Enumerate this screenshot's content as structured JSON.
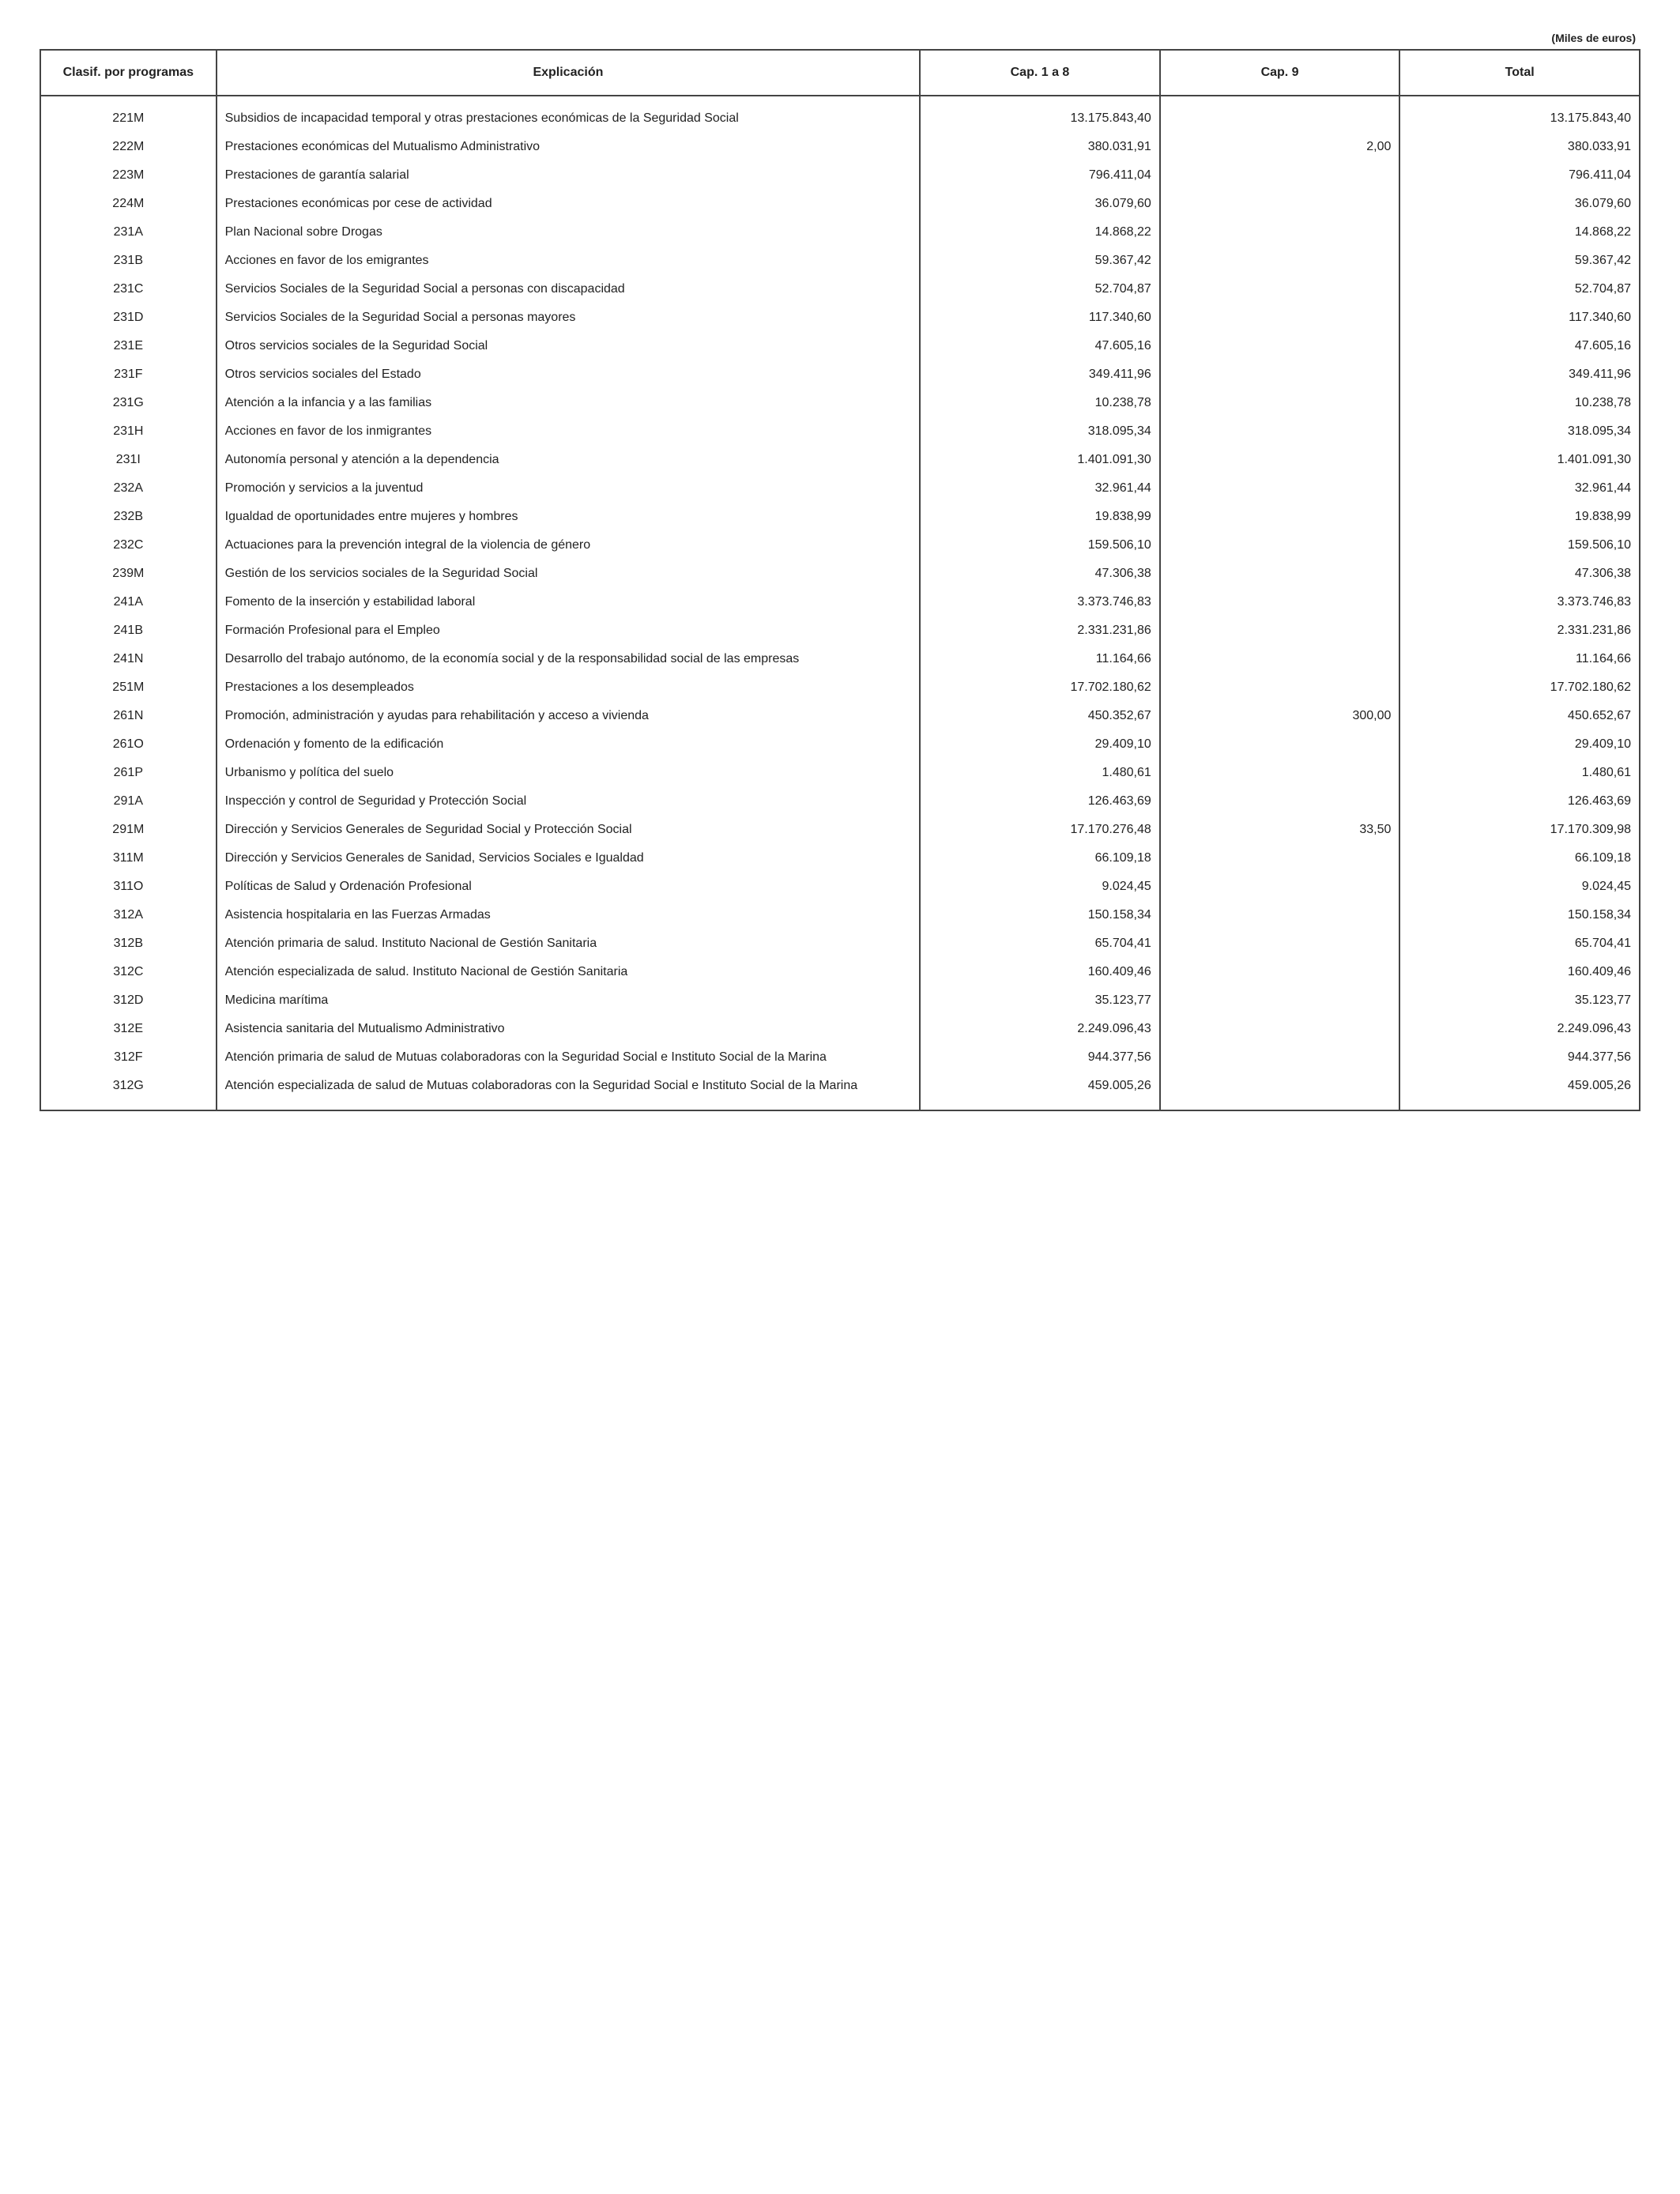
{
  "unit_label": "(Miles de euros)",
  "headers": {
    "code": "Clasif. por programas",
    "expl": "Explicación",
    "cap18": "Cap. 1 a 8",
    "cap9": "Cap. 9",
    "total": "Total"
  },
  "rows": [
    {
      "code": "221M",
      "expl": "Subsidios de incapacidad temporal y otras prestaciones económicas de la Seguridad Social",
      "cap18": "13.175.843,40",
      "cap9": "",
      "total": "13.175.843,40"
    },
    {
      "code": "222M",
      "expl": "Prestaciones económicas del Mutualismo Administrativo",
      "cap18": "380.031,91",
      "cap9": "2,00",
      "total": "380.033,91"
    },
    {
      "code": "223M",
      "expl": "Prestaciones de garantía salarial",
      "cap18": "796.411,04",
      "cap9": "",
      "total": "796.411,04"
    },
    {
      "code": "224M",
      "expl": "Prestaciones económicas por cese de actividad",
      "cap18": "36.079,60",
      "cap9": "",
      "total": "36.079,60"
    },
    {
      "code": "231A",
      "expl": "Plan Nacional sobre Drogas",
      "cap18": "14.868,22",
      "cap9": "",
      "total": "14.868,22"
    },
    {
      "code": "231B",
      "expl": "Acciones en favor de los emigrantes",
      "cap18": "59.367,42",
      "cap9": "",
      "total": "59.367,42"
    },
    {
      "code": "231C",
      "expl": "Servicios Sociales de la Seguridad Social a personas con discapacidad",
      "cap18": "52.704,87",
      "cap9": "",
      "total": "52.704,87"
    },
    {
      "code": "231D",
      "expl": "Servicios Sociales de la Seguridad Social a personas mayores",
      "cap18": "117.340,60",
      "cap9": "",
      "total": "117.340,60"
    },
    {
      "code": "231E",
      "expl": "Otros servicios sociales de la Seguridad Social",
      "cap18": "47.605,16",
      "cap9": "",
      "total": "47.605,16"
    },
    {
      "code": "231F",
      "expl": "Otros servicios sociales del Estado",
      "cap18": "349.411,96",
      "cap9": "",
      "total": "349.411,96"
    },
    {
      "code": "231G",
      "expl": "Atención a la infancia y a las familias",
      "cap18": "10.238,78",
      "cap9": "",
      "total": "10.238,78"
    },
    {
      "code": "231H",
      "expl": "Acciones en favor de los inmigrantes",
      "cap18": "318.095,34",
      "cap9": "",
      "total": "318.095,34"
    },
    {
      "code": "231I",
      "expl": "Autonomía personal y atención a la dependencia",
      "cap18": "1.401.091,30",
      "cap9": "",
      "total": "1.401.091,30"
    },
    {
      "code": "232A",
      "expl": "Promoción y servicios a la juventud",
      "cap18": "32.961,44",
      "cap9": "",
      "total": "32.961,44"
    },
    {
      "code": "232B",
      "expl": "Igualdad de oportunidades entre mujeres y hombres",
      "cap18": "19.838,99",
      "cap9": "",
      "total": "19.838,99"
    },
    {
      "code": "232C",
      "expl": "Actuaciones para la prevención integral de la violencia de género",
      "cap18": "159.506,10",
      "cap9": "",
      "total": "159.506,10"
    },
    {
      "code": "239M",
      "expl": "Gestión de los servicios sociales de la Seguridad Social",
      "cap18": "47.306,38",
      "cap9": "",
      "total": "47.306,38"
    },
    {
      "code": "241A",
      "expl": "Fomento de la inserción y estabilidad laboral",
      "cap18": "3.373.746,83",
      "cap9": "",
      "total": "3.373.746,83"
    },
    {
      "code": "241B",
      "expl": "Formación Profesional para el Empleo",
      "cap18": "2.331.231,86",
      "cap9": "",
      "total": "2.331.231,86"
    },
    {
      "code": "241N",
      "expl": "Desarrollo del trabajo autónomo, de la economía social y de la responsabilidad social de las empresas",
      "cap18": "11.164,66",
      "cap9": "",
      "total": "11.164,66"
    },
    {
      "code": "251M",
      "expl": "Prestaciones a los desempleados",
      "cap18": "17.702.180,62",
      "cap9": "",
      "total": "17.702.180,62"
    },
    {
      "code": "261N",
      "expl": "Promoción, administración y ayudas para rehabilitación y acceso a vivienda",
      "cap18": "450.352,67",
      "cap9": "300,00",
      "total": "450.652,67"
    },
    {
      "code": "261O",
      "expl": "Ordenación y fomento de la edificación",
      "cap18": "29.409,10",
      "cap9": "",
      "total": "29.409,10"
    },
    {
      "code": "261P",
      "expl": "Urbanismo y política del suelo",
      "cap18": "1.480,61",
      "cap9": "",
      "total": "1.480,61"
    },
    {
      "code": "291A",
      "expl": "Inspección y control de Seguridad y Protección Social",
      "cap18": "126.463,69",
      "cap9": "",
      "total": "126.463,69"
    },
    {
      "code": "291M",
      "expl": "Dirección y Servicios Generales de Seguridad Social y Protección Social",
      "cap18": "17.170.276,48",
      "cap9": "33,50",
      "total": "17.170.309,98"
    },
    {
      "code": "311M",
      "expl": "Dirección y Servicios Generales de Sanidad, Servicios Sociales e Igualdad",
      "cap18": "66.109,18",
      "cap9": "",
      "total": "66.109,18"
    },
    {
      "code": "311O",
      "expl": "Políticas de Salud y Ordenación Profesional",
      "cap18": "9.024,45",
      "cap9": "",
      "total": "9.024,45"
    },
    {
      "code": "312A",
      "expl": "Asistencia hospitalaria en las Fuerzas Armadas",
      "cap18": "150.158,34",
      "cap9": "",
      "total": "150.158,34"
    },
    {
      "code": "312B",
      "expl": "Atención primaria de salud. Instituto Nacional de Gestión Sanitaria",
      "cap18": "65.704,41",
      "cap9": "",
      "total": "65.704,41"
    },
    {
      "code": "312C",
      "expl": "Atención especializada de salud. Instituto Nacional de Gestión Sanitaria",
      "cap18": "160.409,46",
      "cap9": "",
      "total": "160.409,46"
    },
    {
      "code": "312D",
      "expl": "Medicina marítima",
      "cap18": "35.123,77",
      "cap9": "",
      "total": "35.123,77"
    },
    {
      "code": "312E",
      "expl": "Asistencia sanitaria del Mutualismo Administrativo",
      "cap18": "2.249.096,43",
      "cap9": "",
      "total": "2.249.096,43"
    },
    {
      "code": "312F",
      "expl": "Atención primaria de salud de Mutuas colaboradoras con la Seguridad Social e Instituto Social de la Marina",
      "cap18": "944.377,56",
      "cap9": "",
      "total": "944.377,56"
    },
    {
      "code": "312G",
      "expl": "Atención especializada de salud de Mutuas colaboradoras con la Seguridad Social e Instituto Social de la Marina",
      "cap18": "459.005,26",
      "cap9": "",
      "total": "459.005,26"
    }
  ]
}
